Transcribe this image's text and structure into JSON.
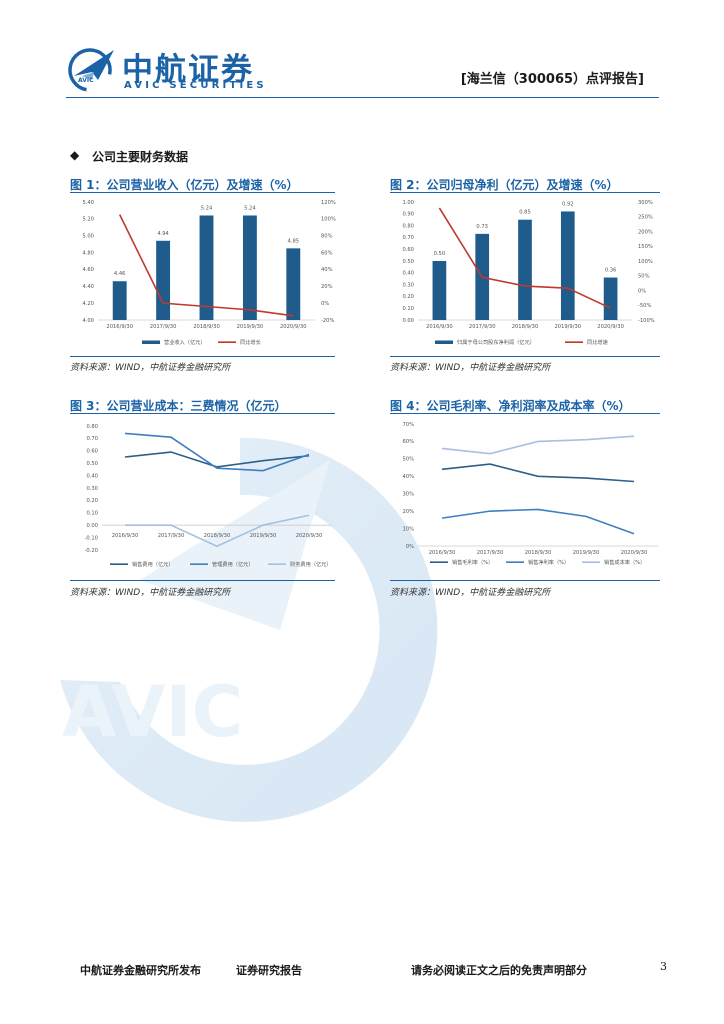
{
  "header": {
    "logo_cn": "中航证券",
    "logo_en": "AVIC SECURITIES",
    "report_title": "[海兰信（300065）点评报告]"
  },
  "watermark": {
    "text": "AVIC"
  },
  "section": {
    "bullet": "◆",
    "title": "公司主要财务数据"
  },
  "figures": [
    {
      "title": "图 1：公司营业收入（亿元）及增速（%）",
      "source": "资料来源：WIND，中航证券金融研究所"
    },
    {
      "title": "图 2：公司归母净利（亿元）及增速（%）",
      "source": "资料来源：WIND，中航证券金融研究所"
    },
    {
      "title": "图 3：公司营业成本：三费情况（亿元）",
      "source": "资料来源：WIND，中航证券金融研究所"
    },
    {
      "title": "图 4：公司毛利率、净利润率及成本率（%）",
      "source": "资料来源：WIND，中航证券金融研究所"
    }
  ],
  "chart_data": [
    {
      "type": "bar",
      "categories": [
        "2016/9/30",
        "2017/9/30",
        "2018/9/30",
        "2019/9/30",
        "2020/9/30"
      ],
      "series": [
        {
          "name": "营业收入（亿元）",
          "values": [
            4.46,
            4.94,
            5.24,
            5.24,
            4.85
          ],
          "data_labels": [
            "4.46",
            "4.94",
            "5.24",
            "5.24",
            "4.85"
          ],
          "color": "#1f5c8b"
        },
        {
          "name": "同比增长",
          "type": "line",
          "axis": "right",
          "values": [
            105,
            0,
            -4,
            -8,
            -15
          ],
          "color": "#c0392b"
        }
      ],
      "y_ticks": [
        "4.00",
        "4.20",
        "4.40",
        "4.60",
        "4.80",
        "5.00",
        "5.20",
        "5.40"
      ],
      "ylim": [
        4.0,
        5.4
      ],
      "y2_ticks": [
        "-20%",
        "0%",
        "20%",
        "40%",
        "60%",
        "80%",
        "100%",
        "120%"
      ],
      "y2lim": [
        -20,
        120
      ]
    },
    {
      "type": "bar",
      "categories": [
        "2016/9/30",
        "2017/9/30",
        "2018/9/30",
        "2019/9/30",
        "2020/9/30"
      ],
      "series": [
        {
          "name": "归属于母公司股东净利润（亿元）",
          "values": [
            0.5,
            0.73,
            0.85,
            0.92,
            0.36
          ],
          "data_labels": [
            "0.50",
            "0.73",
            "0.85",
            "0.92",
            "0.36"
          ],
          "color": "#1f5c8b"
        },
        {
          "name": "同比增速",
          "type": "line",
          "axis": "right",
          "values": [
            280,
            45,
            15,
            8,
            -60
          ],
          "color": "#c0392b"
        }
      ],
      "y_ticks": [
        "0.00",
        "0.10",
        "0.20",
        "0.30",
        "0.40",
        "0.50",
        "0.60",
        "0.70",
        "0.80",
        "0.90",
        "1.00"
      ],
      "ylim": [
        0,
        1.0
      ],
      "y2_ticks": [
        "-100%",
        "-50%",
        "0%",
        "50%",
        "100%",
        "150%",
        "200%",
        "250%",
        "300%"
      ],
      "y2lim": [
        -100,
        300
      ]
    },
    {
      "type": "line",
      "categories": [
        "2016/9/30",
        "2017/9/30",
        "2018/9/30",
        "2019/9/30",
        "2020/9/30"
      ],
      "series": [
        {
          "name": "销售费用（亿元）",
          "values": [
            0.55,
            0.59,
            0.47,
            0.52,
            0.56
          ],
          "color": "#2e5f8a"
        },
        {
          "name": "管理费用（亿元）",
          "values": [
            0.74,
            0.71,
            0.46,
            0.44,
            0.57
          ],
          "color": "#3f7fc1"
        },
        {
          "name": "财务费用（亿元）",
          "values": [
            0.0,
            0.0,
            -0.17,
            0.0,
            0.08
          ],
          "color": "#a8bfe0"
        }
      ],
      "y_ticks": [
        "-0.20",
        "-0.10",
        "0.00",
        "0.10",
        "0.20",
        "0.30",
        "0.40",
        "0.50",
        "0.60",
        "0.70",
        "0.80"
      ],
      "ylim": [
        -0.2,
        0.8
      ]
    },
    {
      "type": "line",
      "categories": [
        "2016/9/30",
        "2017/9/30",
        "2018/9/30",
        "2019/9/30",
        "2020/9/30"
      ],
      "series": [
        {
          "name": "销售毛利率（%）",
          "values": [
            44,
            47,
            40,
            39,
            37
          ],
          "color": "#2e5f8a"
        },
        {
          "name": "销售净利率（%）",
          "values": [
            16,
            20,
            21,
            17,
            7
          ],
          "color": "#3f7fc1"
        },
        {
          "name": "销售成本率（%）",
          "values": [
            56,
            53,
            60,
            61,
            63
          ],
          "color": "#a8bfe0"
        }
      ],
      "y_ticks": [
        "0%",
        "10%",
        "20%",
        "30%",
        "40%",
        "50%",
        "60%",
        "70%"
      ],
      "ylim": [
        0,
        70
      ]
    }
  ],
  "footer": {
    "left": "中航证券金融研究所发布",
    "mid": "证券研究报告",
    "right": "请务必阅读正文之后的免责声明部分",
    "page": "3"
  }
}
